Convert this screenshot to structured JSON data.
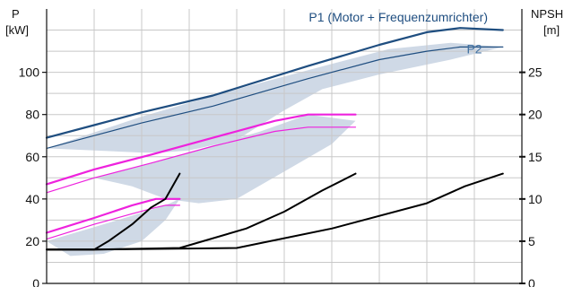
{
  "chart_data": {
    "type": "line",
    "left_axis": {
      "label": "P",
      "unit": "[kW]",
      "range": [
        0,
        130
      ],
      "ticks": [
        0,
        20,
        40,
        60,
        80,
        100
      ]
    },
    "right_axis": {
      "label": "NPSH",
      "unit": "[m]",
      "range": [
        0,
        32.5
      ],
      "ticks": [
        0,
        5,
        10,
        15,
        20,
        25
      ]
    },
    "x_range": [
      0,
      100
    ],
    "grid": true,
    "colors": {
      "blue": "#1f4e80",
      "band": "#cfd9e6",
      "magenta": "#ee22dd",
      "npsh": "#000000"
    },
    "annotations": [
      {
        "text": "P1 (Motor + Frequenzumrichter)",
        "color": "#1f4e80",
        "x": 74,
        "y": 124
      },
      {
        "text": "P2",
        "color": "#3f6fa0",
        "x": 90,
        "y": 109
      }
    ],
    "series": [
      {
        "group": "p1_high",
        "axis": "left",
        "color": "#1f4e80",
        "x": [
          0,
          10,
          20,
          35,
          55,
          70,
          80,
          87,
          96
        ],
        "y": [
          69,
          75,
          81,
          89,
          103,
          113,
          119,
          121,
          120
        ]
      },
      {
        "group": "p2_high",
        "axis": "left",
        "color": "#1f4e80",
        "x": [
          0,
          10,
          20,
          35,
          55,
          70,
          80,
          87,
          96
        ],
        "y": [
          64,
          70,
          76,
          84,
          97,
          106,
          110,
          112,
          112
        ]
      },
      {
        "group": "band_high",
        "axis": "left",
        "x": [
          0,
          20,
          40,
          60,
          72,
          85,
          96,
          85,
          70,
          58,
          50,
          40,
          30,
          24,
          20,
          10,
          0
        ],
        "y": [
          64,
          79,
          92,
          104,
          111,
          114,
          112,
          106,
          99,
          92,
          82,
          68,
          63,
          62,
          62,
          63,
          64
        ]
      },
      {
        "group": "p1_mid",
        "axis": "left",
        "color": "#ee22dd",
        "x": [
          0,
          10,
          22,
          35,
          48,
          55,
          65
        ],
        "y": [
          47,
          54,
          61,
          69,
          77,
          80,
          80
        ]
      },
      {
        "group": "p2_mid",
        "axis": "left",
        "color": "#ee22dd",
        "x": [
          0,
          10,
          22,
          35,
          48,
          55,
          65
        ],
        "y": [
          43,
          50,
          57,
          65,
          72,
          74,
          74
        ]
      },
      {
        "group": "band_mid",
        "axis": "left",
        "x": [
          0,
          15,
          30,
          45,
          55,
          65,
          60,
          50,
          40,
          32,
          25,
          18,
          10,
          0
        ],
        "y": [
          43,
          53,
          62,
          72,
          80,
          77,
          66,
          53,
          40,
          38,
          40,
          46,
          50,
          43
        ]
      },
      {
        "group": "p1_low",
        "axis": "left",
        "color": "#ee22dd",
        "x": [
          0,
          10,
          18,
          23,
          25,
          28
        ],
        "y": [
          24,
          31,
          37,
          40,
          40,
          40
        ]
      },
      {
        "group": "p2_low",
        "axis": "left",
        "color": "#ee22dd",
        "x": [
          0,
          10,
          18,
          23,
          25,
          28
        ],
        "y": [
          21,
          28,
          33,
          36,
          37,
          37
        ]
      },
      {
        "group": "band_low",
        "axis": "left",
        "x": [
          0,
          15,
          25,
          28,
          25,
          20,
          12,
          5,
          0
        ],
        "y": [
          20,
          30,
          37,
          40,
          30,
          20,
          14,
          13,
          20
        ]
      },
      {
        "group": "npsh_low",
        "axis": "right",
        "color": "#000000",
        "x": [
          0,
          10,
          13,
          18,
          22,
          25,
          28
        ],
        "y": [
          4,
          4,
          5,
          7,
          9,
          10,
          13
        ]
      },
      {
        "group": "npsh_mid",
        "axis": "right",
        "color": "#000000",
        "x": [
          0,
          10,
          28,
          42,
          50,
          58,
          65
        ],
        "y": [
          4,
          4,
          4.2,
          6.5,
          8.5,
          11,
          13
        ]
      },
      {
        "group": "npsh_high",
        "axis": "right",
        "color": "#000000",
        "x": [
          0,
          10,
          40,
          60,
          80,
          88,
          96
        ],
        "y": [
          4,
          4,
          4.2,
          6.5,
          9.5,
          11.5,
          13
        ]
      }
    ]
  }
}
